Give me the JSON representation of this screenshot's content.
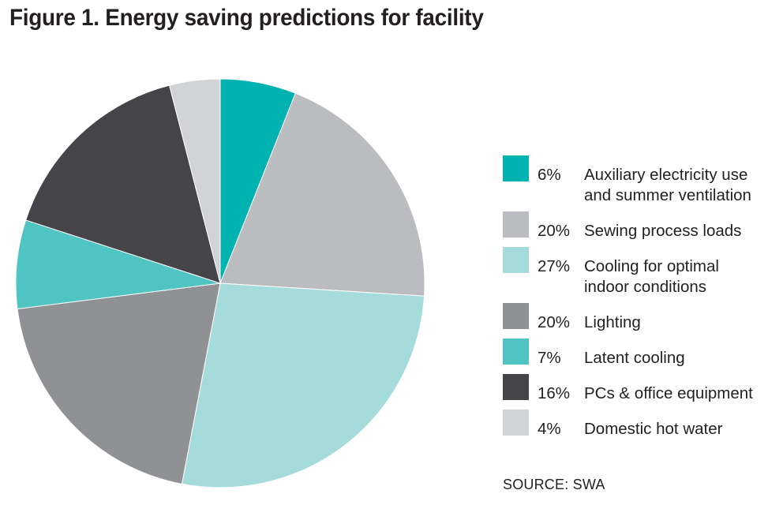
{
  "title": "Figure 1. Energy saving predictions for facility",
  "source": "SOURCE: SWA",
  "chart_data": {
    "type": "pie",
    "title": "Figure 1. Energy saving predictions for facility",
    "start": "12 o'clock",
    "direction": "clockwise",
    "legend_position": "right",
    "slices": [
      {
        "label": "Auxiliary electricity use and summer ventilation",
        "lines": [
          "Auxiliary electricity use",
          "and summer ventilation"
        ],
        "value": 6,
        "pct_label": "6%",
        "color": "#00b2b0"
      },
      {
        "label": "Sewing process loads",
        "lines": [
          "Sewing process loads"
        ],
        "value": 20,
        "pct_label": "20%",
        "color": "#bbbcbf"
      },
      {
        "label": "Cooling for optimal indoor conditions",
        "lines": [
          "Cooling for optimal",
          "indoor conditions"
        ],
        "value": 27,
        "pct_label": "27%",
        "color": "#a6dbdb"
      },
      {
        "label": "Lighting",
        "lines": [
          "Lighting"
        ],
        "value": 20,
        "pct_label": "20%",
        "color": "#8f9194"
      },
      {
        "label": "Latent cooling",
        "lines": [
          "Latent cooling"
        ],
        "value": 7,
        "pct_label": "7%",
        "color": "#4fc4c2"
      },
      {
        "label": "PCs & office equipment",
        "lines": [
          "PCs & office equipment"
        ],
        "value": 16,
        "pct_label": "16%",
        "color": "#454448"
      },
      {
        "label": "Domestic hot water",
        "lines": [
          "Domestic hot water"
        ],
        "value": 4,
        "pct_label": "4%",
        "color": "#d2d3d5"
      }
    ]
  }
}
